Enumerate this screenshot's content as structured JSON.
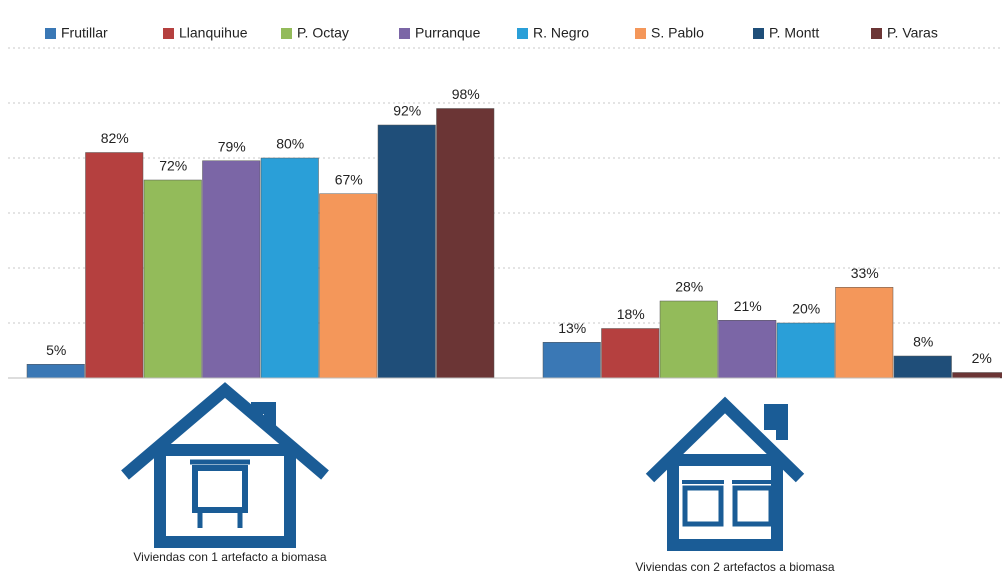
{
  "chart_data": {
    "type": "bar",
    "categories": [
      "Viviendas con 1 artefacto a biomasa",
      "Viviendas con 2 artefactos a biomasa"
    ],
    "series": [
      {
        "name": "Frutillar",
        "color": "#3a78b5",
        "values": [
          5,
          13
        ],
        "value_labels": [
          "5%",
          "13%"
        ]
      },
      {
        "name": "Llanquihue",
        "color": "#b5403f",
        "values": [
          82,
          18
        ],
        "value_labels": [
          "82%",
          "18%"
        ]
      },
      {
        "name": "P. Octay",
        "color": "#93bb5a",
        "values": [
          72,
          28
        ],
        "value_labels": [
          "72%",
          "28%"
        ]
      },
      {
        "name": "Purranque",
        "color": "#7b66a6",
        "values": [
          79,
          21
        ],
        "value_labels": [
          "79%",
          "21%"
        ]
      },
      {
        "name": "R. Negro",
        "color": "#2a9fd8",
        "values": [
          80,
          20
        ],
        "value_labels": [
          "80%",
          "20%"
        ]
      },
      {
        "name": "S. Pablo",
        "color": "#f4975a",
        "values": [
          67,
          33
        ],
        "value_labels": [
          "67%",
          "33%"
        ]
      },
      {
        "name": "P. Montt",
        "color": "#1f4e79",
        "values": [
          92,
          8
        ],
        "value_labels": [
          "92%",
          "8%"
        ]
      },
      {
        "name": "P. Varas",
        "color": "#6b3535",
        "values": [
          98,
          2
        ],
        "value_labels": [
          "98%",
          "2%"
        ]
      }
    ],
    "ylim": [
      0,
      120
    ],
    "yticks": [
      0,
      20,
      40,
      60,
      80,
      100,
      120
    ],
    "grid": true,
    "legend": "top"
  }
}
